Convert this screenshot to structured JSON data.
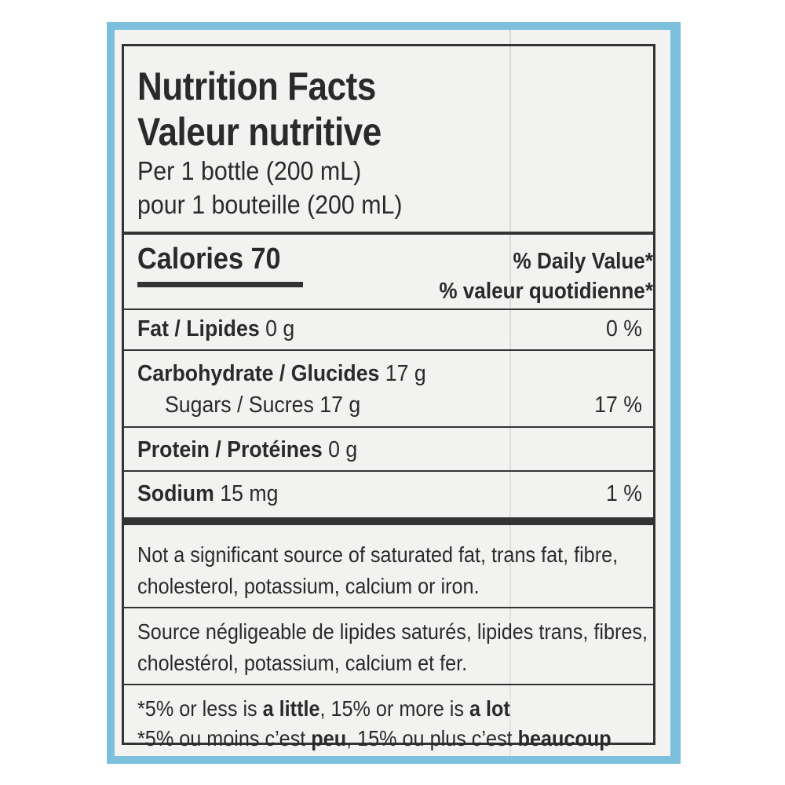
{
  "header": {
    "title_en": "Nutrition Facts",
    "title_fr": "Valeur nutritive",
    "serving_en": "Per 1 bottle (200 mL)",
    "serving_fr": "pour 1 bouteille (200 mL)"
  },
  "calories": {
    "label": "Calories",
    "value": "70"
  },
  "daily_value": {
    "en": "% Daily Value",
    "fr": "% valeur quotidienne",
    "asterisk": "*"
  },
  "nutrients": [
    {
      "name": "Fat / Lipides",
      "amount": "0 g",
      "percent": "0 %"
    },
    {
      "name": "Carbohydrate / Glucides",
      "amount": "17 g",
      "percent": ""
    },
    {
      "name": "Sugars / Sucres",
      "amount": "17 g",
      "percent": "17 %"
    },
    {
      "name": "Protein / Protéines",
      "amount": "0 g",
      "percent": ""
    },
    {
      "name": "Sodium",
      "amount": "15 mg",
      "percent": "1 %"
    }
  ],
  "notes": {
    "en_line1": "Not a significant source of saturated fat, trans fat, fibre,",
    "en_line2": "cholesterol, potassium, calcium or iron.",
    "fr_line1": "Source négligeable de lipides saturés, lipides trans, fibres,",
    "fr_line2": "cholestérol, potassium, calcium et fer."
  },
  "footnotes": {
    "en": {
      "p1": "*5% or less is ",
      "b1": "a little",
      "p2": ", 15% or more is ",
      "b2": "a lot"
    },
    "fr": {
      "p1": "*5% ou moins c’est ",
      "b1": "peu",
      "p2": ", 15% ou plus c’est ",
      "b2": "beaucoup"
    }
  },
  "colors": {
    "border_blue": "#7dc0dd",
    "paper": "#f2f3f1",
    "ink": "#2a2a2a"
  }
}
